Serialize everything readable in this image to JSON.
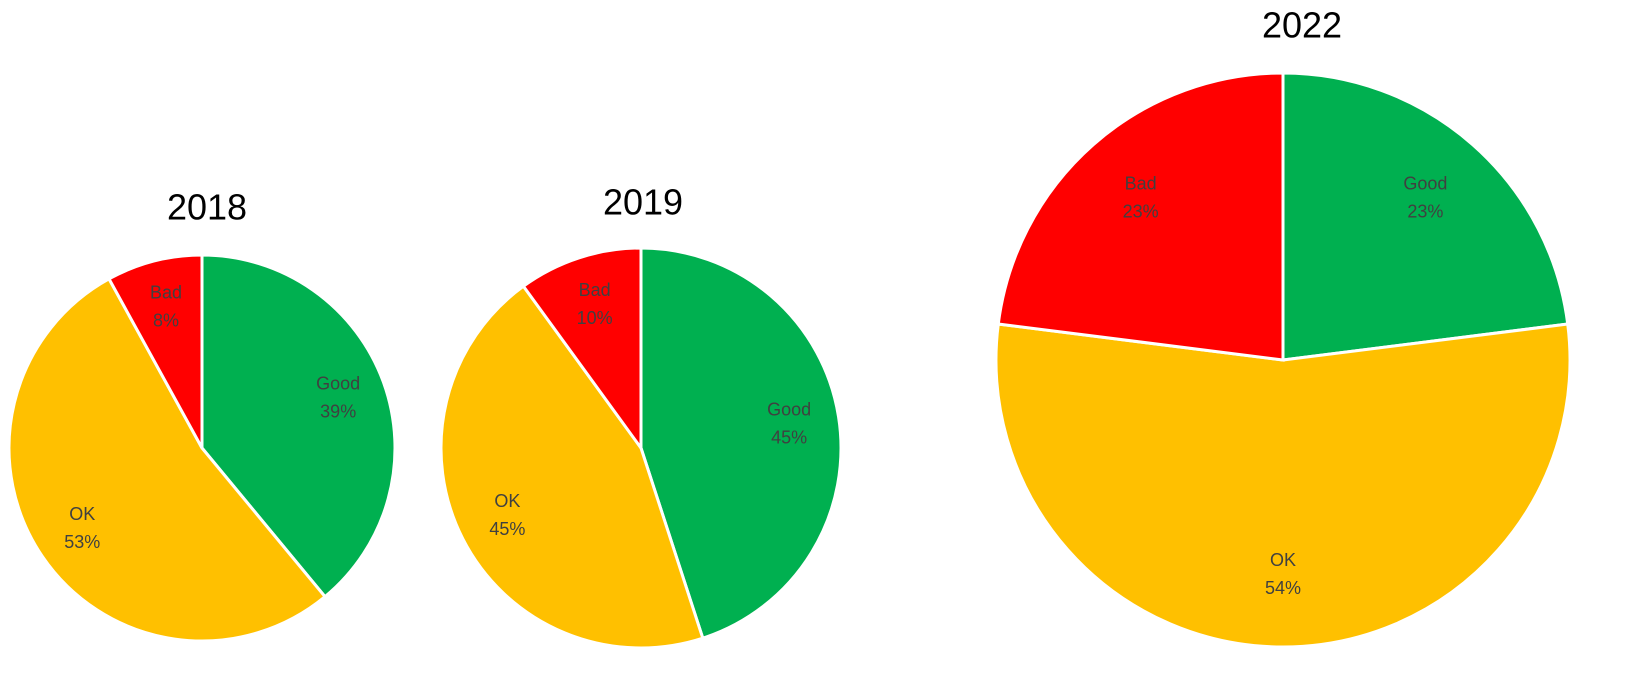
{
  "chart_data": [
    {
      "type": "pie",
      "title": "2018",
      "categories": [
        "Good",
        "OK",
        "Bad"
      ],
      "values": [
        39,
        53,
        8
      ],
      "value_labels": [
        "39%",
        "53%",
        "8%"
      ],
      "colors": [
        "#00b050",
        "#ffc000",
        "#ff0000"
      ]
    },
    {
      "type": "pie",
      "title": "2019",
      "categories": [
        "Good",
        "OK",
        "Bad"
      ],
      "values": [
        45,
        45,
        10
      ],
      "value_labels": [
        "45%",
        "45%",
        "10%"
      ],
      "colors": [
        "#00b050",
        "#ffc000",
        "#ff0000"
      ]
    },
    {
      "type": "pie",
      "title": "2022",
      "categories": [
        "Good",
        "OK",
        "Bad"
      ],
      "values": [
        23,
        54,
        23
      ],
      "value_labels": [
        "23%",
        "54%",
        "23%"
      ],
      "colors": [
        "#00b050",
        "#ffc000",
        "#ff0000"
      ]
    }
  ]
}
